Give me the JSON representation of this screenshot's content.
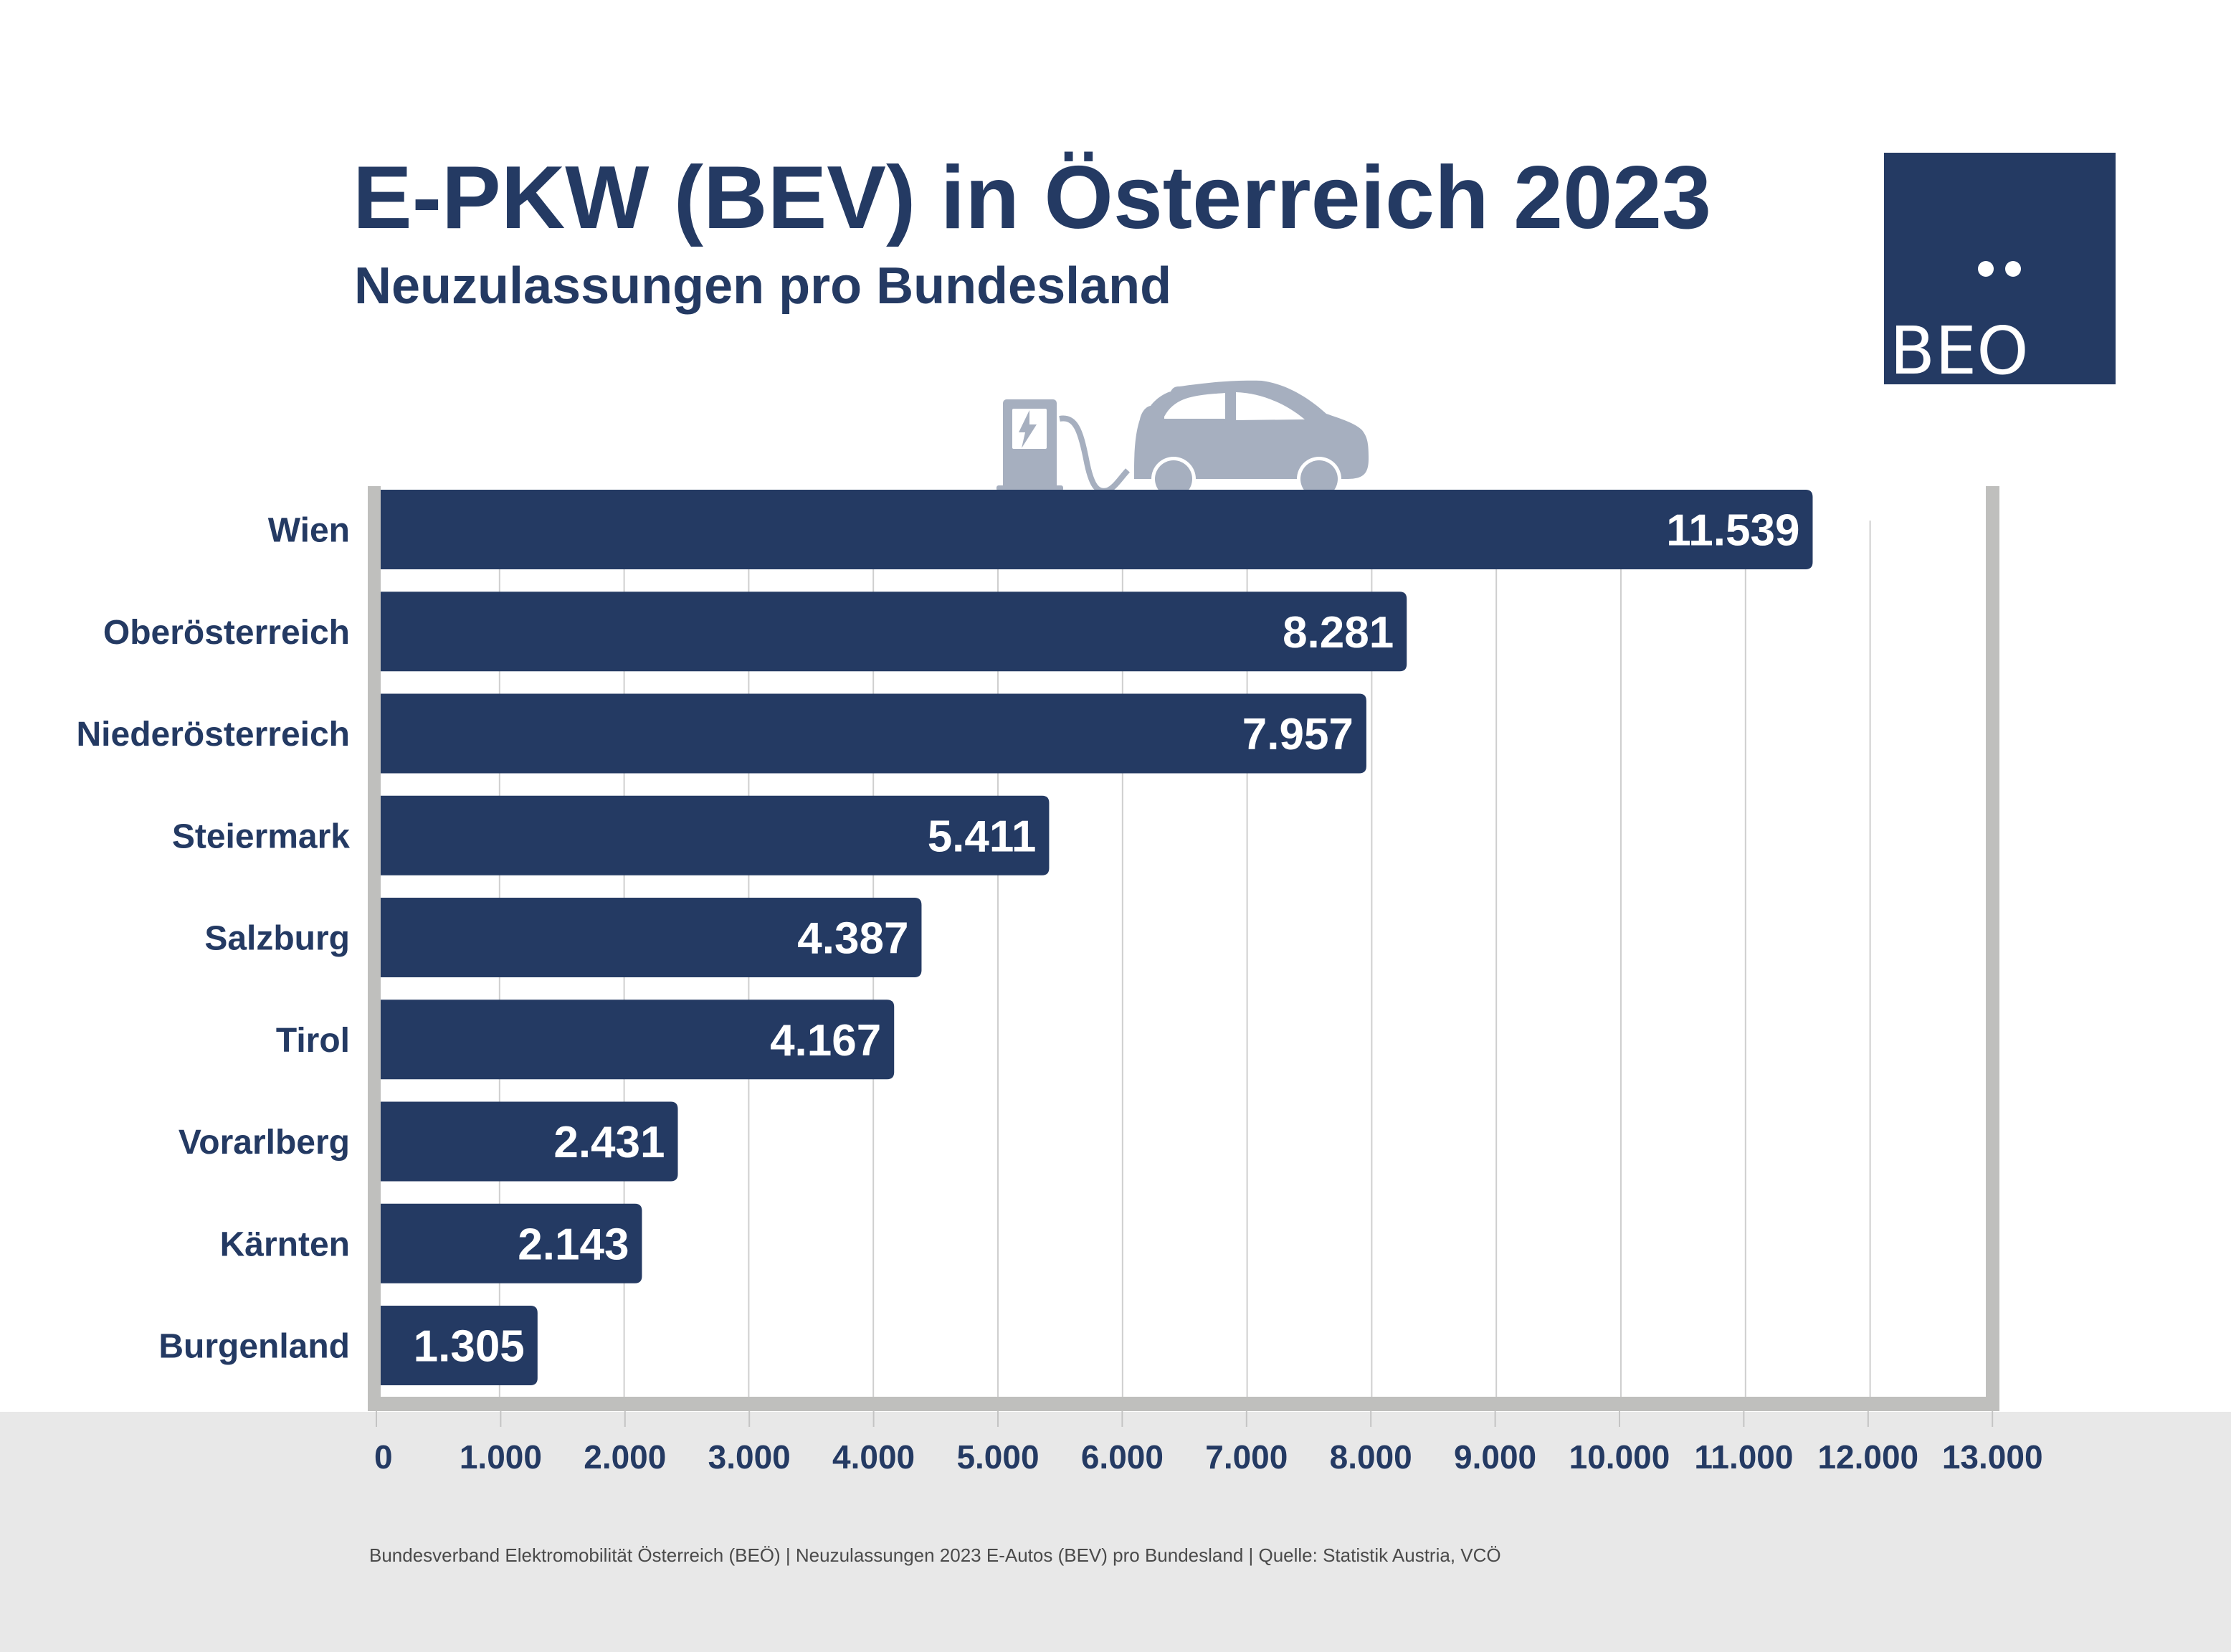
{
  "header": {
    "title": "E-PKW (BEV) in Österreich 2023",
    "subtitle": "Neuzulassungen pro Bundesland"
  },
  "logo": {
    "text": "BEO",
    "icon": "beo-logo-icon"
  },
  "illustration": {
    "icons": [
      "ev-charger-icon",
      "electric-car-icon"
    ]
  },
  "footer": {
    "source_text": "Bundesverband Elektromobilität Österreich (BEÖ) | Neuzulassungen 2023 E-Autos (BEV) pro Bundesland | Quelle: Statistik Austria, VCÖ"
  },
  "colors": {
    "bar": "#243a63",
    "text": "#243a63",
    "frame": "#bfbfbd",
    "gridline": "#cfcfcf",
    "footer_band": "#e8e8e8",
    "illustration": "#a6afbf"
  },
  "chart_data": {
    "type": "bar",
    "orientation": "horizontal",
    "title": "E-PKW (BEV) in Österreich 2023",
    "subtitle": "Neuzulassungen pro Bundesland",
    "xlabel": "",
    "ylabel": "",
    "categories": [
      "Wien",
      "Oberösterreich",
      "Niederösterreich",
      "Steiermark",
      "Salzburg",
      "Tirol",
      "Vorarlberg",
      "Kärnten",
      "Burgenland"
    ],
    "values": [
      11539,
      8281,
      7957,
      5411,
      4387,
      4167,
      2431,
      2143,
      1305
    ],
    "value_labels": [
      "11.539",
      "8.281",
      "7.957",
      "5.411",
      "4.387",
      "4.167",
      "2.431",
      "2.143",
      "1.305"
    ],
    "xlim": [
      0,
      13000
    ],
    "x_ticks": [
      0,
      1000,
      2000,
      3000,
      4000,
      5000,
      6000,
      7000,
      8000,
      9000,
      10000,
      11000,
      12000,
      13000
    ],
    "x_tick_labels": [
      "0",
      "1.000",
      "2.000",
      "3.000",
      "4.000",
      "5.000",
      "6.000",
      "7.000",
      "8.000",
      "9.000",
      "10.000",
      "11.000",
      "12.000",
      "13.000"
    ],
    "grid": true,
    "legend": "none"
  }
}
